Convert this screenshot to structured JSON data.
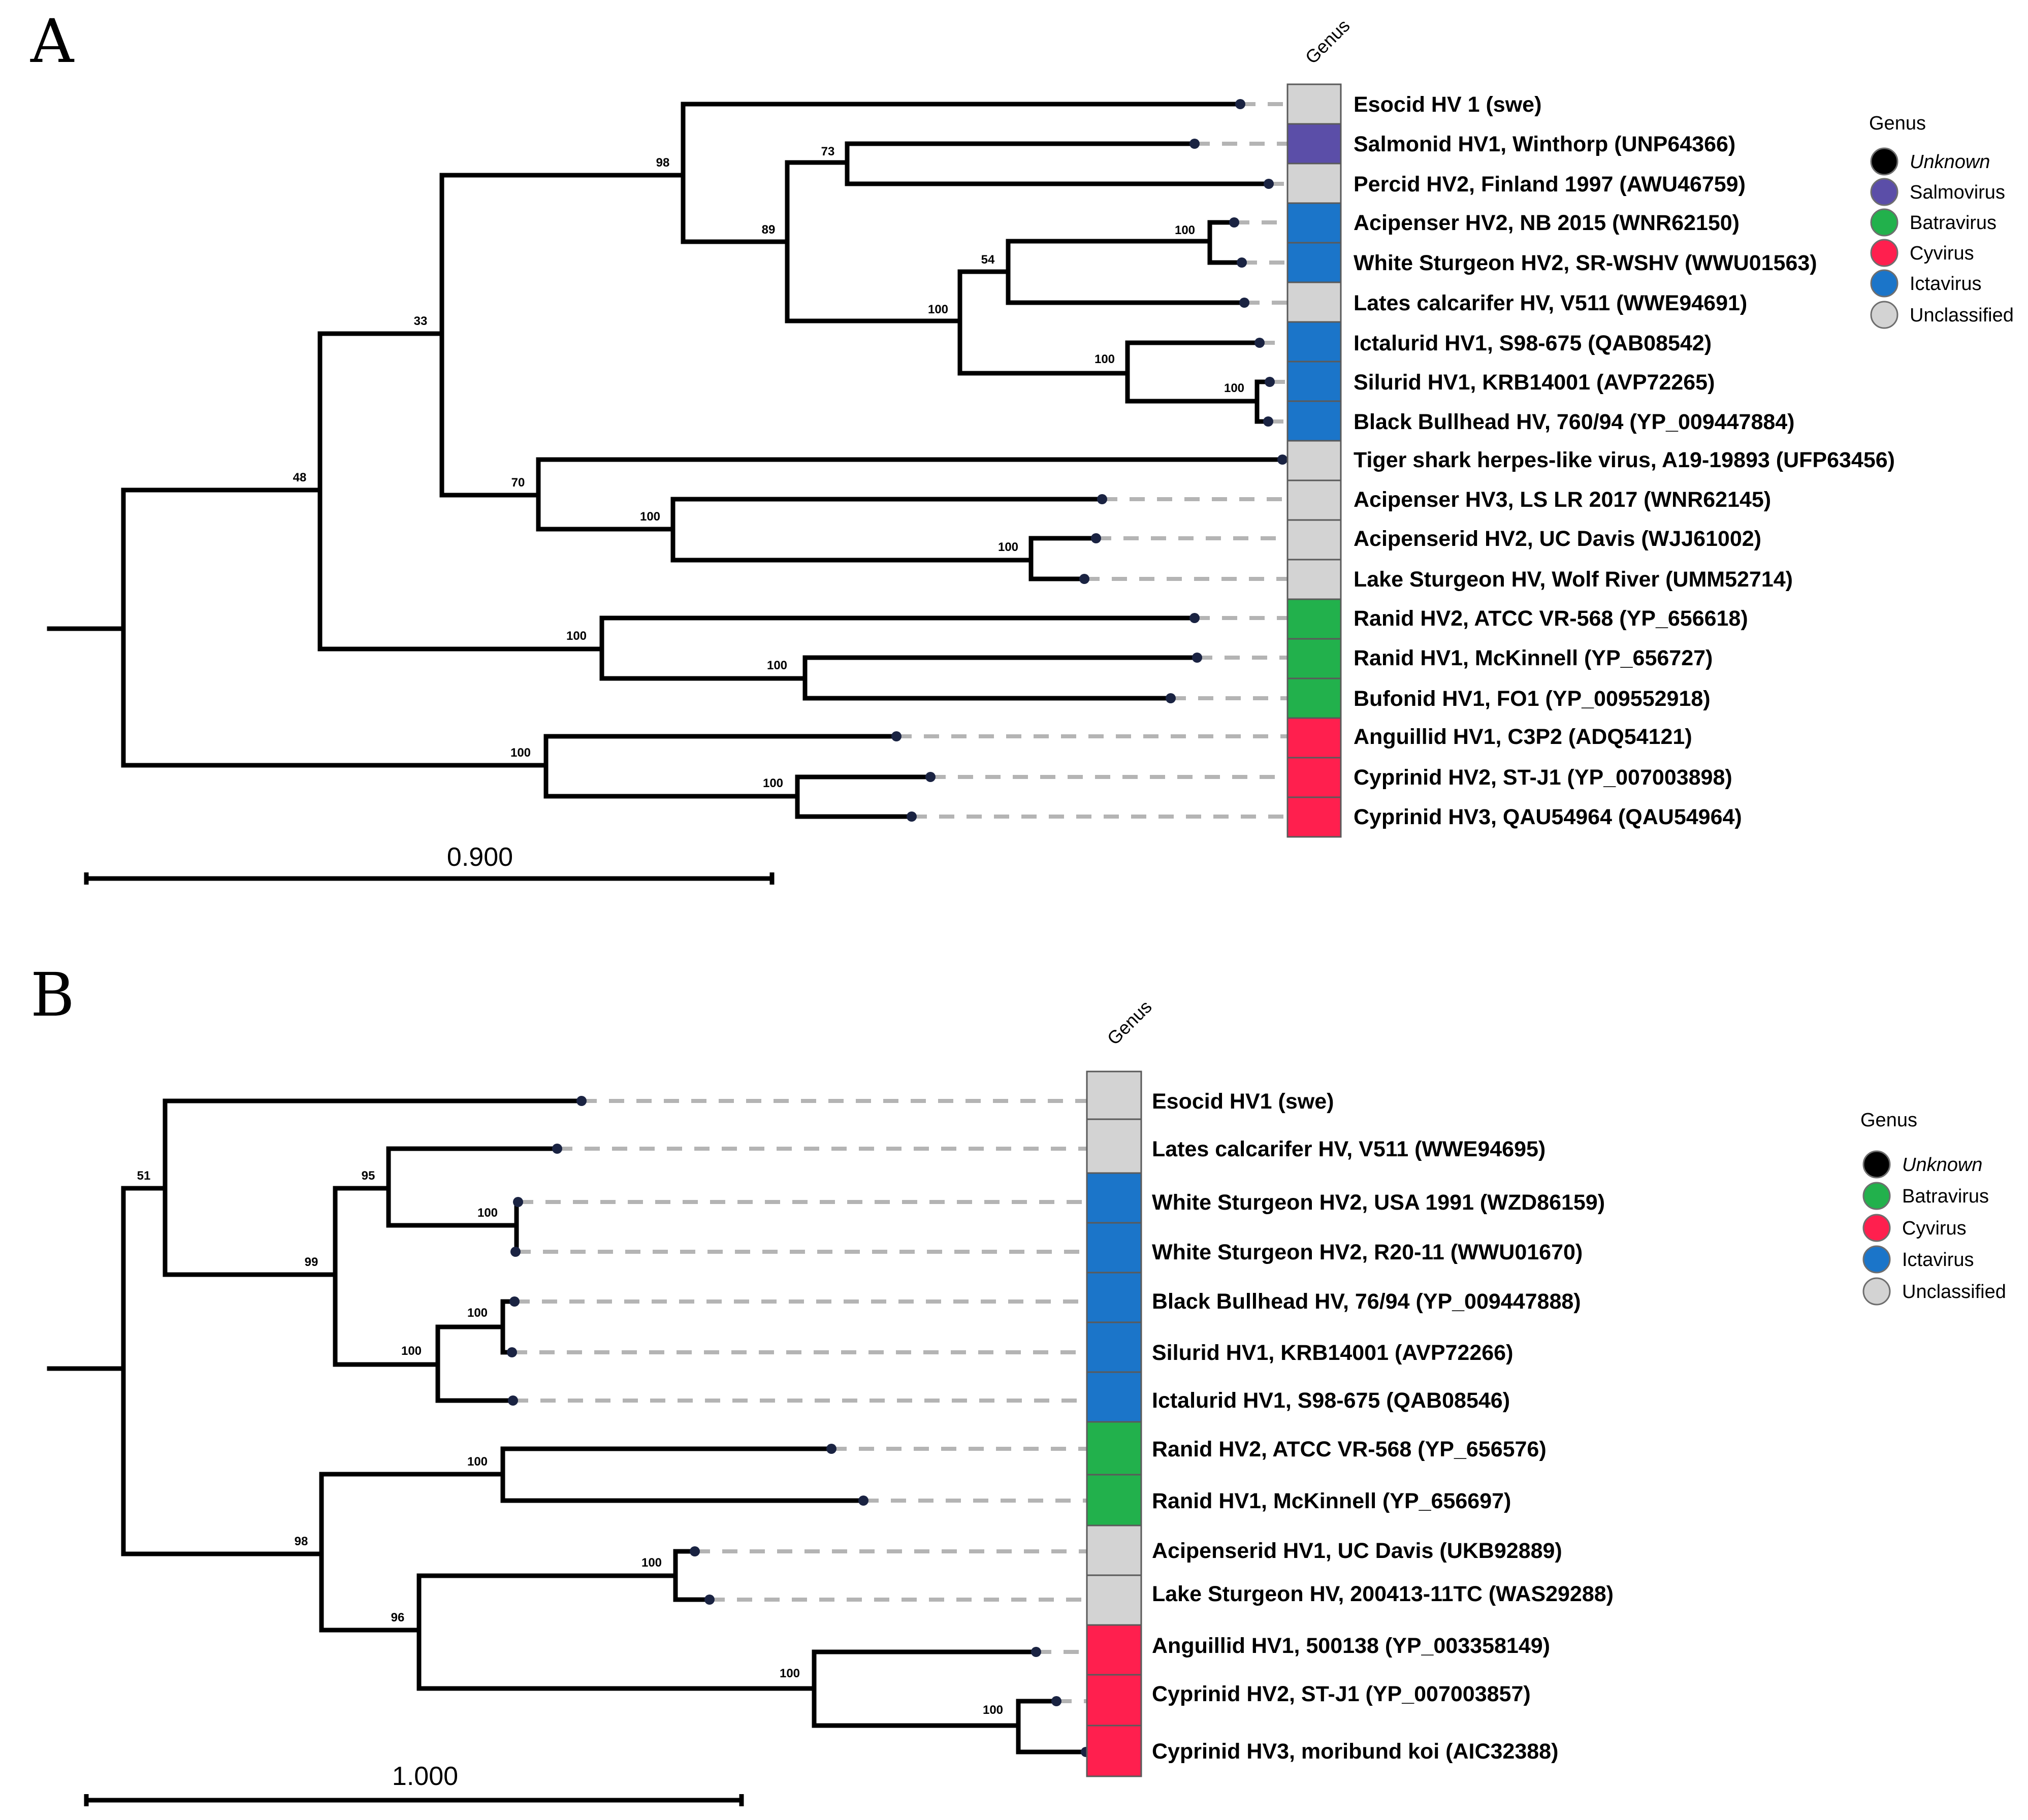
{
  "genus_colors": {
    "Unknown": "#000000",
    "Salmovirus": "#5b4ea8",
    "Batravirus": "#22b14c",
    "Cyvirus": "#ff1f4e",
    "Ictavirus": "#1b75c9",
    "Unclassified": "#d3d3d3"
  },
  "panels": [
    {
      "letter": "A",
      "genus_header": "Genus",
      "scale_label": "0.900",
      "legend": {
        "title": "Genus",
        "items": [
          {
            "label": "Unknown",
            "genus": "Unknown",
            "italic": true
          },
          {
            "label": "Salmovirus",
            "genus": "Salmovirus",
            "italic": false
          },
          {
            "label": "Batravirus",
            "genus": "Batravirus",
            "italic": false
          },
          {
            "label": "Cyvirus",
            "genus": "Cyvirus",
            "italic": false
          },
          {
            "label": "Ictavirus",
            "genus": "Ictavirus",
            "italic": false
          },
          {
            "label": "Unclassified",
            "genus": "Unclassified",
            "italic": false
          }
        ]
      },
      "support_values": [
        "98",
        "73",
        "89",
        "100",
        "54",
        "100",
        "100",
        "100",
        "33",
        "70",
        "100",
        "100",
        "48",
        "100",
        "100",
        "100",
        "100"
      ],
      "leaves": [
        {
          "label": "Esocid HV 1 (swe)",
          "genus": "Unclassified"
        },
        {
          "label": "Salmonid HV1, Winthorp (UNP64366)",
          "genus": "Salmovirus"
        },
        {
          "label": "Percid HV2, Finland 1997 (AWU46759)",
          "genus": "Unclassified"
        },
        {
          "label": "Acipenser HV2, NB 2015 (WNR62150)",
          "genus": "Ictavirus"
        },
        {
          "label": "White Sturgeon HV2, SR-WSHV (WWU01563)",
          "genus": "Ictavirus"
        },
        {
          "label": "Lates calcarifer HV, V511 (WWE94691)",
          "genus": "Unclassified"
        },
        {
          "label": "Ictalurid HV1, S98-675 (QAB08542)",
          "genus": "Ictavirus"
        },
        {
          "label": "Silurid HV1, KRB14001 (AVP72265)",
          "genus": "Ictavirus"
        },
        {
          "label": "Black Bullhead HV, 760/94 (YP_009447884)",
          "genus": "Ictavirus"
        },
        {
          "label": "Tiger shark herpes-like virus, A19-19893 (UFP63456)",
          "genus": "Unclassified"
        },
        {
          "label": "Acipenser HV3, LS LR 2017 (WNR62145)",
          "genus": "Unclassified"
        },
        {
          "label": "Acipenserid HV2, UC Davis (WJJ61002)",
          "genus": "Unclassified"
        },
        {
          "label": "Lake Sturgeon HV, Wolf River (UMM52714)",
          "genus": "Unclassified"
        },
        {
          "label": "Ranid HV2, ATCC VR-568 (YP_656618)",
          "genus": "Batravirus"
        },
        {
          "label": "Ranid HV1, McKinnell (YP_656727)",
          "genus": "Batravirus"
        },
        {
          "label": "Bufonid HV1, FO1 (YP_009552918)",
          "genus": "Batravirus"
        },
        {
          "label": "Anguillid HV1, C3P2 (ADQ54121)",
          "genus": "Cyvirus"
        },
        {
          "label": "Cyprinid HV2, ST-J1 (YP_007003898)",
          "genus": "Cyvirus"
        },
        {
          "label": "Cyprinid HV3, QAU54964 (QAU54964)",
          "genus": "Cyvirus"
        }
      ]
    },
    {
      "letter": "B",
      "genus_header": "Genus",
      "scale_label": "1.000",
      "legend": {
        "title": "Genus",
        "items": [
          {
            "label": "Unknown",
            "genus": "Unknown",
            "italic": true
          },
          {
            "label": "Batravirus",
            "genus": "Batravirus",
            "italic": false
          },
          {
            "label": "Cyvirus",
            "genus": "Cyvirus",
            "italic": false
          },
          {
            "label": "Ictavirus",
            "genus": "Ictavirus",
            "italic": false
          },
          {
            "label": "Unclassified",
            "genus": "Unclassified",
            "italic": false
          }
        ]
      },
      "support_values": [
        "51",
        "95",
        "100",
        "99",
        "100",
        "100",
        "100",
        "98",
        "100",
        "96",
        "100",
        "100"
      ],
      "leaves": [
        {
          "label": "Esocid HV1 (swe)",
          "genus": "Unclassified"
        },
        {
          "label": "Lates calcarifer HV, V511 (WWE94695)",
          "genus": "Unclassified"
        },
        {
          "label": "White Sturgeon HV2, USA 1991 (WZD86159)",
          "genus": "Ictavirus"
        },
        {
          "label": "White Sturgeon HV2, R20-11 (WWU01670)",
          "genus": "Ictavirus"
        },
        {
          "label": "Black Bullhead HV, 76/94 (YP_009447888)",
          "genus": "Ictavirus"
        },
        {
          "label": "Silurid HV1, KRB14001 (AVP72266)",
          "genus": "Ictavirus"
        },
        {
          "label": "Ictalurid HV1, S98-675 (QAB08546)",
          "genus": "Ictavirus"
        },
        {
          "label": "Ranid HV2, ATCC VR-568 (YP_656576)",
          "genus": "Batravirus"
        },
        {
          "label": "Ranid HV1, McKinnell (YP_656697)",
          "genus": "Batravirus"
        },
        {
          "label": "Acipenserid HV1, UC Davis (UKB92889)",
          "genus": "Unclassified"
        },
        {
          "label": "Lake Sturgeon HV, 200413-11TC (WAS29288)",
          "genus": "Unclassified"
        },
        {
          "label": "Anguillid HV1, 500138 (YP_003358149)",
          "genus": "Cyvirus"
        },
        {
          "label": "Cyprinid HV2, ST-J1 (YP_007003857)",
          "genus": "Cyvirus"
        },
        {
          "label": "Cyprinid HV3, moribund koi (AIC32388)",
          "genus": "Cyvirus"
        }
      ]
    }
  ]
}
